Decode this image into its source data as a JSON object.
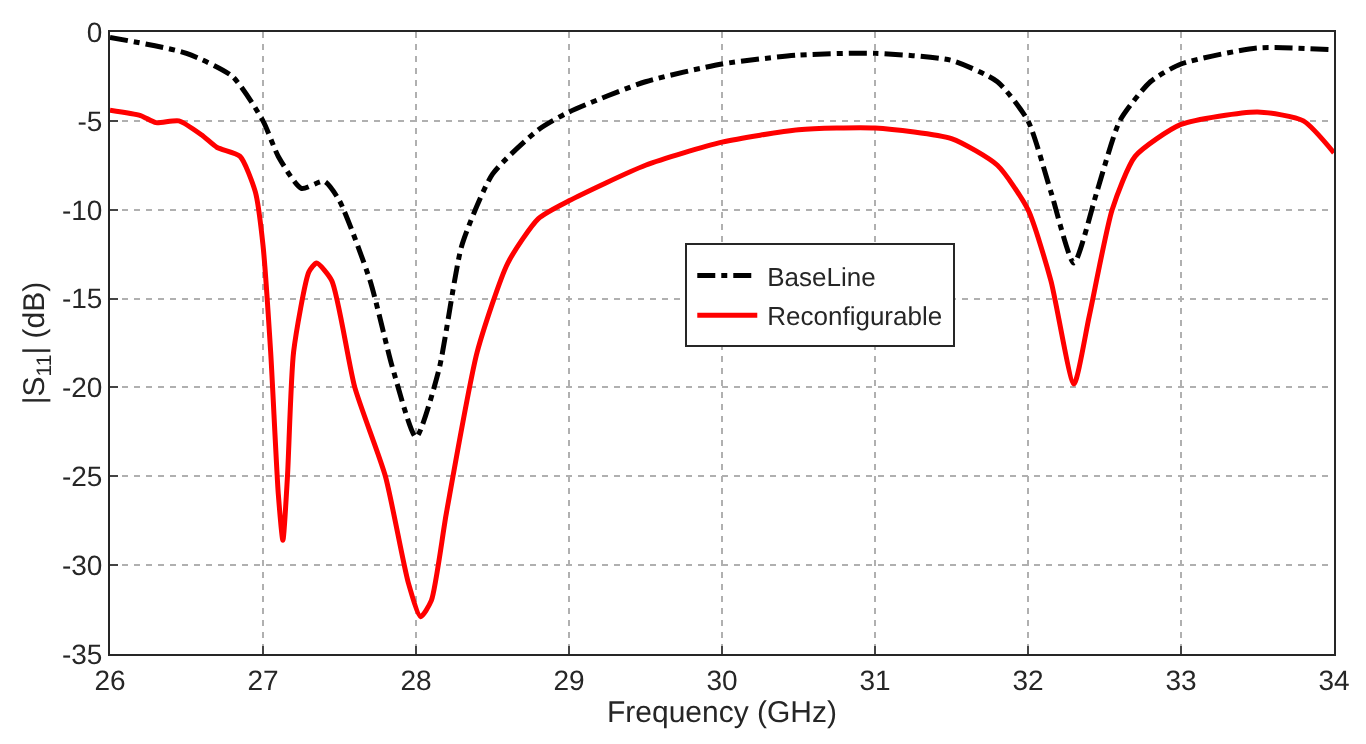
{
  "chart_data": {
    "type": "line",
    "xlabel": "Frequency (GHz)",
    "ylabel": "|S$_{11}$| (dB)",
    "xlim": [
      26,
      34
    ],
    "xticks": [
      26,
      27,
      28,
      29,
      30,
      31,
      32,
      33,
      34
    ],
    "ylim": [
      -35,
      0
    ],
    "yticks": [
      -35,
      -30,
      -25,
      -20,
      -15,
      -10,
      -5,
      0
    ],
    "grid": true,
    "legend": "center",
    "marker": "none",
    "series": [
      {
        "name": "BaseLine",
        "color": "#000000",
        "line_style": "dashed",
        "x": [
          26,
          26.5,
          26.8,
          27.0,
          27.1,
          27.25,
          27.4,
          27.5,
          27.7,
          27.85,
          28.0,
          28.15,
          28.3,
          28.5,
          28.8,
          29,
          29.5,
          30,
          30.5,
          31,
          31.5,
          31.8,
          32.0,
          32.15,
          32.3,
          32.45,
          32.6,
          32.8,
          33,
          33.5,
          34
        ],
        "values": [
          -0.3,
          -1.2,
          -2.5,
          -5,
          -7,
          -8.8,
          -8.4,
          -9.5,
          -14,
          -19,
          -22.8,
          -19,
          -12,
          -8,
          -5.5,
          -4.5,
          -2.8,
          -1.8,
          -1.3,
          -1.2,
          -1.6,
          -2.8,
          -5,
          -9,
          -13,
          -9,
          -5,
          -2.8,
          -1.8,
          -0.9,
          -1.0
        ]
      },
      {
        "name": "Reconfigurable",
        "color": "#ff0000",
        "line_style": "solid",
        "x": [
          26,
          26.2,
          26.3,
          26.45,
          26.6,
          26.7,
          26.85,
          26.95,
          27.0,
          27.05,
          27.1,
          27.13,
          27.16,
          27.2,
          27.3,
          27.35,
          27.45,
          27.6,
          27.8,
          27.95,
          28.03,
          28.1,
          28.2,
          28.4,
          28.6,
          28.8,
          29,
          29.5,
          30,
          30.5,
          31,
          31.5,
          31.8,
          32.0,
          32.15,
          32.3,
          32.4,
          32.55,
          32.7,
          33,
          33.5,
          33.8,
          34
        ],
        "values": [
          -4.4,
          -4.7,
          -5.1,
          -5,
          -5.8,
          -6.5,
          -7,
          -9,
          -12,
          -18,
          -26,
          -28.6,
          -25,
          -18,
          -13.5,
          -13,
          -14,
          -20,
          -25,
          -31,
          -32.9,
          -32,
          -27,
          -18,
          -13,
          -10.5,
          -9.5,
          -7.5,
          -6.2,
          -5.5,
          -5.4,
          -6,
          -7.5,
          -10,
          -14,
          -19.8,
          -16,
          -10,
          -7,
          -5.2,
          -4.5,
          -5,
          -6.8
        ]
      }
    ]
  }
}
